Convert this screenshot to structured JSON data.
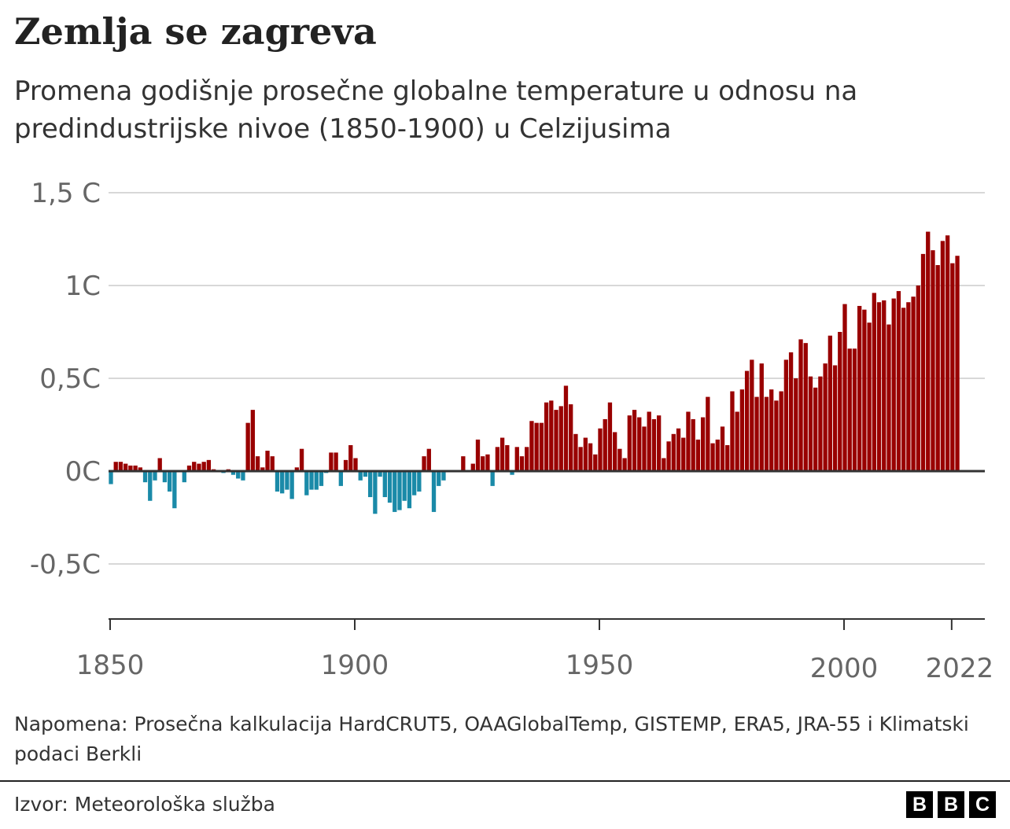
{
  "title": "Zemlja se zagreva",
  "subtitle": "Promena godišnje prosečne globalne temperature u odnosu na predindustrijske nivoe (1850-1900) u Celzijusima",
  "note": "Napomena: Prosečna kalkulacija HardCRUT5, OAAGlobalTemp, GISTEMP, ERA5, JRA-55 i Klimatski podaci Berkli",
  "source": "Izvor: Meteorološka služba",
  "logo": [
    "B",
    "B",
    "C"
  ],
  "chart_data": {
    "type": "bar",
    "title": "",
    "xlabel": "",
    "ylabel": "",
    "ylim": [
      -0.8,
      1.5
    ],
    "grid": true,
    "legend": "none",
    "y_ticks": [
      {
        "value": 1.5,
        "label": "1,5 C"
      },
      {
        "value": 1.0,
        "label": "1C"
      },
      {
        "value": 0.5,
        "label": "0,5C"
      },
      {
        "value": 0.0,
        "label": "0C"
      },
      {
        "value": -0.5,
        "label": "-0,5C"
      }
    ],
    "x_ticks": [
      {
        "value": 1850,
        "label": "1850"
      },
      {
        "value": 1900,
        "label": "1900"
      },
      {
        "value": 1950,
        "label": "1950"
      },
      {
        "value": 2000,
        "label": "2000"
      },
      {
        "value": 2022,
        "label": "2022"
      }
    ],
    "colors": {
      "positive": "#990000",
      "negative": "#1a8aa8",
      "grid": "#cccccc",
      "axis": "#333333"
    },
    "start_year": 1850,
    "end_year": 2022,
    "values": [
      -0.07,
      0.05,
      0.05,
      0.04,
      0.03,
      0.03,
      0.02,
      -0.06,
      -0.16,
      -0.05,
      0.07,
      -0.06,
      -0.11,
      -0.2,
      0.0,
      -0.06,
      0.03,
      0.05,
      0.04,
      0.05,
      0.06,
      0.01,
      0.0,
      -0.01,
      0.01,
      -0.02,
      -0.04,
      -0.05,
      0.26,
      0.33,
      0.08,
      0.02,
      0.11,
      0.08,
      -0.11,
      -0.12,
      -0.1,
      -0.15,
      0.02,
      0.12,
      -0.13,
      -0.1,
      -0.1,
      -0.08,
      -0.01,
      0.1,
      0.1,
      -0.08,
      0.06,
      0.14,
      0.07,
      -0.05,
      -0.03,
      -0.14,
      -0.23,
      -0.03,
      -0.14,
      -0.17,
      -0.22,
      -0.21,
      -0.16,
      -0.2,
      -0.13,
      -0.11,
      0.08,
      0.12,
      -0.22,
      -0.08,
      -0.05,
      0.0,
      0.0,
      0.0,
      0.08,
      0.0,
      0.04,
      0.17,
      0.08,
      0.09,
      -0.08,
      0.13,
      0.18,
      0.14,
      -0.02,
      0.13,
      0.08,
      0.13,
      0.27,
      0.26,
      0.26,
      0.37,
      0.38,
      0.33,
      0.35,
      0.46,
      0.36,
      0.2,
      0.13,
      0.18,
      0.15,
      0.09,
      0.23,
      0.28,
      0.37,
      0.21,
      0.12,
      0.07,
      0.3,
      0.33,
      0.29,
      0.24,
      0.32,
      0.28,
      0.3,
      0.07,
      0.16,
      0.2,
      0.23,
      0.18,
      0.32,
      0.28,
      0.17,
      0.29,
      0.4,
      0.15,
      0.17,
      0.24,
      0.14,
      0.43,
      0.32,
      0.44,
      0.54,
      0.6,
      0.4,
      0.58,
      0.4,
      0.44,
      0.38,
      0.43,
      0.6,
      0.64,
      0.5,
      0.71,
      0.69,
      0.51,
      0.45,
      0.51,
      0.58,
      0.73,
      0.57,
      0.75,
      0.9,
      0.66,
      0.66,
      0.89,
      0.87,
      0.8,
      0.96,
      0.91,
      0.92,
      0.79,
      0.93,
      0.97,
      0.88,
      0.91,
      0.94,
      1.0,
      1.17,
      1.29,
      1.19,
      1.11,
      1.24,
      1.27,
      1.12,
      1.16
    ]
  }
}
